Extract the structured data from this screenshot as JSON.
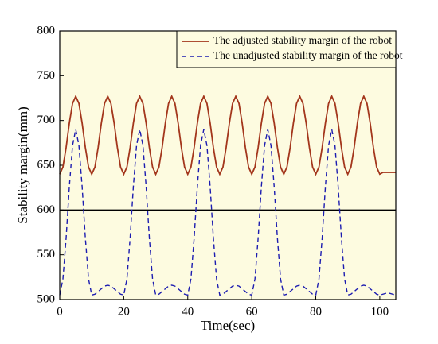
{
  "chart_data": {
    "type": "line",
    "xlabel": "Time(sec)",
    "ylabel": "Stability margin(mm)",
    "xlim": [
      0,
      105
    ],
    "ylim": [
      500,
      800
    ],
    "xticks": [
      0,
      20,
      40,
      60,
      80,
      100
    ],
    "yticks": [
      500,
      550,
      600,
      650,
      700,
      750,
      800
    ],
    "hline": 600,
    "legend": "upper right",
    "x": [
      0,
      1,
      2,
      3,
      4,
      5,
      6,
      7,
      8,
      9,
      10,
      11,
      12,
      13,
      14,
      15,
      16,
      17,
      18,
      19,
      20,
      21,
      22,
      23,
      24,
      25,
      26,
      27,
      28,
      29,
      30,
      31,
      32,
      33,
      34,
      35,
      36,
      37,
      38,
      39,
      40,
      41,
      42,
      43,
      44,
      45,
      46,
      47,
      48,
      49,
      50,
      51,
      52,
      53,
      54,
      55,
      56,
      57,
      58,
      59,
      60,
      61,
      62,
      63,
      64,
      65,
      66,
      67,
      68,
      69,
      70,
      71,
      72,
      73,
      74,
      75,
      76,
      77,
      78,
      79,
      80,
      81,
      82,
      83,
      84,
      85,
      86,
      87,
      88,
      89,
      90,
      91,
      92,
      93,
      94,
      95,
      96,
      97,
      98,
      99,
      100,
      101,
      102,
      103,
      104,
      105
    ],
    "series": [
      {
        "name": "The adjusted stability margin of the robot",
        "color": "#a3361c",
        "style": "solid",
        "values": [
          640,
          648,
          670,
          697,
          719,
          727,
          719,
          697,
          670,
          648,
          640,
          648,
          670,
          697,
          719,
          727,
          719,
          697,
          670,
          648,
          640,
          648,
          670,
          697,
          719,
          727,
          719,
          697,
          670,
          648,
          640,
          648,
          670,
          697,
          719,
          727,
          719,
          697,
          670,
          648,
          640,
          648,
          670,
          697,
          719,
          727,
          719,
          697,
          670,
          648,
          640,
          648,
          670,
          697,
          719,
          727,
          719,
          697,
          670,
          648,
          640,
          648,
          670,
          697,
          719,
          727,
          719,
          697,
          670,
          648,
          640,
          648,
          670,
          697,
          719,
          727,
          719,
          697,
          670,
          648,
          640,
          648,
          670,
          697,
          719,
          727,
          719,
          697,
          670,
          648,
          640,
          648,
          670,
          697,
          719,
          727,
          719,
          697,
          670,
          648,
          640,
          642,
          642,
          642,
          642,
          642
        ]
      },
      {
        "name": "The unadjusted stability margin of the robot",
        "color": "#1c1cb0",
        "style": "dashed",
        "values": [
          505,
          523,
          569,
          626,
          672,
          690,
          672,
          626,
          569,
          523,
          505,
          506,
          509,
          512,
          515,
          516,
          515,
          512,
          509,
          506,
          505,
          523,
          569,
          626,
          672,
          690,
          672,
          626,
          569,
          523,
          505,
          506,
          509,
          512,
          515,
          516,
          515,
          512,
          509,
          506,
          505,
          523,
          569,
          626,
          672,
          690,
          672,
          626,
          569,
          523,
          505,
          506,
          509,
          512,
          515,
          516,
          515,
          512,
          509,
          506,
          505,
          523,
          569,
          626,
          672,
          690,
          672,
          626,
          569,
          523,
          505,
          506,
          509,
          512,
          515,
          516,
          515,
          512,
          509,
          506,
          505,
          523,
          569,
          626,
          672,
          690,
          672,
          626,
          569,
          523,
          505,
          506,
          509,
          512,
          515,
          516,
          515,
          512,
          509,
          506,
          505,
          506,
          507,
          507,
          506,
          505
        ]
      }
    ]
  }
}
